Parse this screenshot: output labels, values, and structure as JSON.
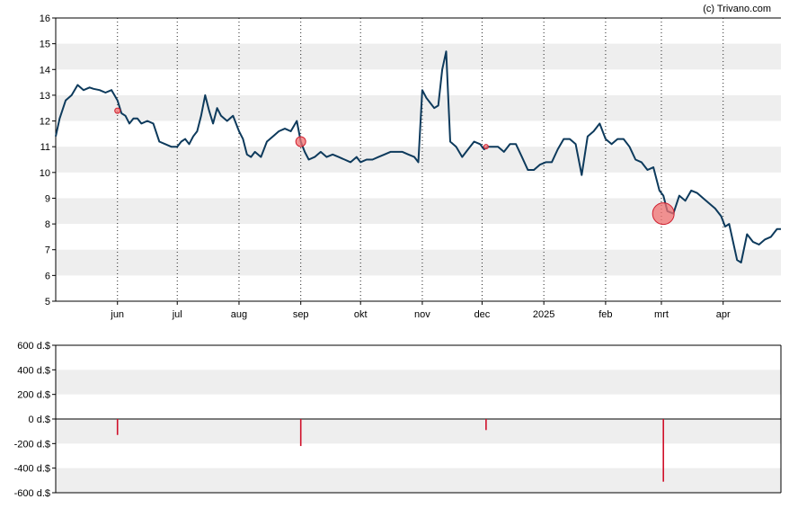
{
  "credit": "(c) Trivano.com",
  "colors": {
    "price_line": "#0d3a5c",
    "band": "#eeeeee",
    "marker_fill": "#f07070",
    "marker_stroke": "#d02030",
    "volume_bar": "#d0102a"
  },
  "chart_data": [
    {
      "type": "line",
      "title": "",
      "xlabel": "",
      "ylabel": "",
      "ylim": [
        5,
        16
      ],
      "y_ticks": [
        "5",
        "6",
        "7",
        "8",
        "9",
        "10",
        "11",
        "12",
        "13",
        "14",
        "15",
        "16"
      ],
      "x_tick_labels": [
        "jun",
        "jul",
        "aug",
        "sep",
        "okt",
        "nov",
        "dec",
        "2025",
        "feb",
        "mrt",
        "apr"
      ],
      "x_tick_dates": [
        "2024-06-01",
        "2024-07-01",
        "2024-08-01",
        "2024-09-01",
        "2024-10-01",
        "2024-11-01",
        "2024-12-01",
        "2025-01-01",
        "2025-02-01",
        "2025-03-01",
        "2025-04-01"
      ],
      "xlim": [
        "2024-05-01",
        "2025-04-30"
      ],
      "grid": "alternating horizontal bands, dotted vertical lines at month ticks",
      "series": [
        {
          "x": [
            "2024-05-01",
            "2024-05-03",
            "2024-05-06",
            "2024-05-09",
            "2024-05-12",
            "2024-05-15",
            "2024-05-18",
            "2024-05-20",
            "2024-05-23",
            "2024-05-26",
            "2024-05-29",
            "2024-06-01",
            "2024-06-03",
            "2024-06-05",
            "2024-06-07",
            "2024-06-09",
            "2024-06-11",
            "2024-06-13",
            "2024-06-16",
            "2024-06-19",
            "2024-06-22",
            "2024-06-25",
            "2024-06-28",
            "2024-07-01",
            "2024-07-03",
            "2024-07-05",
            "2024-07-07",
            "2024-07-09",
            "2024-07-11",
            "2024-07-13",
            "2024-07-15",
            "2024-07-17",
            "2024-07-19",
            "2024-07-21",
            "2024-07-23",
            "2024-07-26",
            "2024-07-29",
            "2024-08-01",
            "2024-08-03",
            "2024-08-05",
            "2024-08-07",
            "2024-08-09",
            "2024-08-12",
            "2024-08-15",
            "2024-08-18",
            "2024-08-21",
            "2024-08-24",
            "2024-08-27",
            "2024-08-30",
            "2024-09-01",
            "2024-09-03",
            "2024-09-05",
            "2024-09-08",
            "2024-09-11",
            "2024-09-14",
            "2024-09-17",
            "2024-09-20",
            "2024-09-23",
            "2024-09-26",
            "2024-09-29",
            "2024-10-01",
            "2024-10-04",
            "2024-10-07",
            "2024-10-10",
            "2024-10-13",
            "2024-10-16",
            "2024-10-19",
            "2024-10-22",
            "2024-10-25",
            "2024-10-28",
            "2024-10-30",
            "2024-11-01",
            "2024-11-03",
            "2024-11-05",
            "2024-11-07",
            "2024-11-09",
            "2024-11-11",
            "2024-11-13",
            "2024-11-15",
            "2024-11-18",
            "2024-11-21",
            "2024-11-24",
            "2024-11-27",
            "2024-11-30",
            "2024-12-02",
            "2024-12-04",
            "2024-12-06",
            "2024-12-09",
            "2024-12-12",
            "2024-12-15",
            "2024-12-18",
            "2024-12-21",
            "2024-12-24",
            "2024-12-27",
            "2024-12-30",
            "2025-01-02",
            "2025-01-05",
            "2025-01-08",
            "2025-01-11",
            "2025-01-14",
            "2025-01-17",
            "2025-01-20",
            "2025-01-23",
            "2025-01-26",
            "2025-01-29",
            "2025-02-01",
            "2025-02-04",
            "2025-02-07",
            "2025-02-10",
            "2025-02-13",
            "2025-02-16",
            "2025-02-19",
            "2025-02-22",
            "2025-02-25",
            "2025-02-28",
            "2025-03-02",
            "2025-03-04",
            "2025-03-07",
            "2025-03-10",
            "2025-03-13",
            "2025-03-16",
            "2025-03-19",
            "2025-03-22",
            "2025-03-25",
            "2025-03-28",
            "2025-03-31",
            "2025-04-02",
            "2025-04-04",
            "2025-04-06",
            "2025-04-08",
            "2025-04-10",
            "2025-04-13",
            "2025-04-16",
            "2025-04-19",
            "2025-04-22",
            "2025-04-25",
            "2025-04-28",
            "2025-04-30"
          ],
          "y": [
            11.4,
            12.1,
            12.8,
            13.0,
            13.4,
            13.2,
            13.3,
            13.25,
            13.2,
            13.1,
            13.2,
            12.8,
            12.3,
            12.2,
            11.9,
            12.1,
            12.1,
            11.9,
            12.0,
            11.9,
            11.2,
            11.1,
            11.0,
            11.0,
            11.2,
            11.3,
            11.1,
            11.4,
            11.6,
            12.2,
            13.0,
            12.4,
            11.9,
            12.5,
            12.2,
            12.0,
            12.2,
            11.6,
            11.3,
            10.7,
            10.6,
            10.8,
            10.6,
            11.2,
            11.4,
            11.6,
            11.7,
            11.6,
            12.0,
            11.2,
            10.8,
            10.5,
            10.6,
            10.8,
            10.6,
            10.7,
            10.6,
            10.5,
            10.4,
            10.6,
            10.4,
            10.5,
            10.5,
            10.6,
            10.7,
            10.8,
            10.8,
            10.8,
            10.7,
            10.6,
            10.4,
            13.2,
            12.9,
            12.7,
            12.5,
            12.6,
            14.0,
            14.7,
            11.2,
            11.0,
            10.6,
            10.9,
            11.2,
            11.1,
            10.9,
            11.0,
            11.0,
            11.0,
            10.8,
            11.1,
            11.1,
            10.6,
            10.1,
            10.1,
            10.3,
            10.4,
            10.4,
            10.9,
            11.3,
            11.3,
            11.1,
            9.9,
            11.4,
            11.6,
            11.9,
            11.3,
            11.1,
            11.3,
            11.3,
            11.0,
            10.5,
            10.4,
            10.1,
            10.2,
            9.3,
            9.1,
            8.5,
            8.4,
            9.1,
            8.9,
            9.3,
            9.2,
            9.0,
            8.8,
            8.6,
            8.3,
            7.9,
            8.0,
            7.3,
            6.6,
            6.5,
            7.6,
            7.3,
            7.2,
            7.4,
            7.5,
            7.8,
            7.8
          ]
        }
      ],
      "markers": [
        {
          "x": "2024-06-01",
          "y": 12.4,
          "size": "small"
        },
        {
          "x": "2024-09-01",
          "y": 11.2,
          "size": "medium"
        },
        {
          "x": "2024-12-03",
          "y": 11.0,
          "size": "tiny"
        },
        {
          "x": "2025-03-02",
          "y": 8.4,
          "size": "large"
        }
      ]
    },
    {
      "type": "bar",
      "title": "",
      "xlabel": "",
      "ylabel": "",
      "ylim": [
        -600,
        600
      ],
      "y_ticks": [
        "-600 d.$",
        "-400 d.$",
        "-200 d.$",
        "0 d.$",
        "200 d.$",
        "400 d.$",
        "600 d.$"
      ],
      "grid": "alternating horizontal bands",
      "series": [
        {
          "x": [
            "2024-06-01",
            "2024-09-01",
            "2024-12-03",
            "2025-03-02"
          ],
          "values": [
            -130,
            -220,
            -90,
            -510
          ]
        }
      ]
    }
  ]
}
